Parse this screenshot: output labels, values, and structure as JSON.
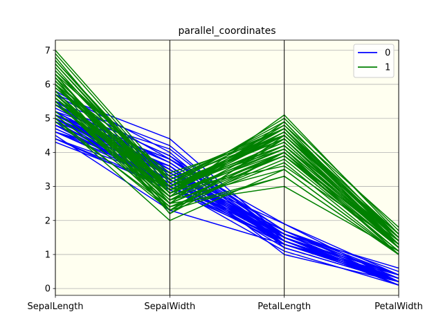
{
  "chart_data": {
    "type": "line",
    "title": "parallel_coordinates",
    "xlabel": "",
    "ylabel": "",
    "categories": [
      "SepalLength",
      "SepalWidth",
      "PetalLength",
      "PetalWidth"
    ],
    "ylim": [
      -0.2,
      7.3
    ],
    "yticks": [
      0,
      1,
      2,
      3,
      4,
      5,
      6,
      7
    ],
    "grid": "horizontal",
    "background": "#fffff0",
    "legend_position": "top-right",
    "series": [
      {
        "name": "0",
        "color": "#0000ff",
        "lines": [
          [
            5.1,
            3.5,
            1.4,
            0.2
          ],
          [
            4.9,
            3.0,
            1.4,
            0.2
          ],
          [
            4.7,
            3.2,
            1.3,
            0.2
          ],
          [
            4.6,
            3.1,
            1.5,
            0.2
          ],
          [
            5.0,
            3.6,
            1.4,
            0.2
          ],
          [
            5.4,
            3.9,
            1.7,
            0.4
          ],
          [
            4.6,
            3.4,
            1.4,
            0.3
          ],
          [
            5.0,
            3.4,
            1.5,
            0.2
          ],
          [
            4.4,
            2.9,
            1.4,
            0.2
          ],
          [
            4.9,
            3.1,
            1.5,
            0.1
          ],
          [
            5.4,
            3.7,
            1.5,
            0.2
          ],
          [
            4.8,
            3.4,
            1.6,
            0.2
          ],
          [
            4.8,
            3.0,
            1.4,
            0.1
          ],
          [
            4.3,
            3.0,
            1.1,
            0.1
          ],
          [
            5.8,
            4.0,
            1.2,
            0.2
          ],
          [
            5.7,
            4.4,
            1.5,
            0.4
          ],
          [
            5.4,
            3.9,
            1.3,
            0.4
          ],
          [
            5.1,
            3.5,
            1.4,
            0.3
          ],
          [
            5.7,
            3.8,
            1.7,
            0.3
          ],
          [
            5.1,
            3.8,
            1.5,
            0.3
          ],
          [
            5.4,
            3.4,
            1.7,
            0.2
          ],
          [
            5.1,
            3.7,
            1.5,
            0.4
          ],
          [
            4.6,
            3.6,
            1.0,
            0.2
          ],
          [
            5.1,
            3.3,
            1.7,
            0.5
          ],
          [
            4.8,
            3.4,
            1.9,
            0.2
          ],
          [
            5.0,
            3.0,
            1.6,
            0.2
          ],
          [
            5.0,
            3.4,
            1.6,
            0.4
          ],
          [
            5.2,
            3.5,
            1.5,
            0.2
          ],
          [
            5.2,
            3.4,
            1.4,
            0.2
          ],
          [
            4.7,
            3.2,
            1.6,
            0.2
          ],
          [
            4.8,
            3.1,
            1.6,
            0.2
          ],
          [
            5.4,
            3.4,
            1.5,
            0.4
          ],
          [
            5.2,
            4.1,
            1.5,
            0.1
          ],
          [
            5.5,
            4.2,
            1.4,
            0.2
          ],
          [
            4.9,
            3.1,
            1.5,
            0.2
          ],
          [
            5.0,
            3.2,
            1.2,
            0.2
          ],
          [
            5.5,
            3.5,
            1.3,
            0.2
          ],
          [
            4.9,
            3.6,
            1.4,
            0.1
          ],
          [
            4.4,
            3.0,
            1.3,
            0.2
          ],
          [
            5.1,
            3.4,
            1.5,
            0.2
          ],
          [
            5.0,
            3.5,
            1.3,
            0.3
          ],
          [
            4.5,
            2.3,
            1.3,
            0.3
          ],
          [
            4.4,
            3.2,
            1.3,
            0.2
          ],
          [
            5.0,
            3.5,
            1.6,
            0.6
          ],
          [
            5.1,
            3.8,
            1.9,
            0.4
          ],
          [
            4.8,
            3.0,
            1.4,
            0.3
          ],
          [
            5.1,
            3.8,
            1.6,
            0.2
          ],
          [
            4.6,
            3.2,
            1.4,
            0.2
          ],
          [
            5.3,
            3.7,
            1.5,
            0.2
          ],
          [
            5.0,
            3.3,
            1.4,
            0.2
          ]
        ]
      },
      {
        "name": "1",
        "color": "#008000",
        "lines": [
          [
            7.0,
            3.2,
            4.7,
            1.4
          ],
          [
            6.4,
            3.2,
            4.5,
            1.5
          ],
          [
            6.9,
            3.1,
            4.9,
            1.5
          ],
          [
            5.5,
            2.3,
            4.0,
            1.3
          ],
          [
            6.5,
            2.8,
            4.6,
            1.5
          ],
          [
            5.7,
            2.8,
            4.5,
            1.3
          ],
          [
            6.3,
            3.3,
            4.7,
            1.6
          ],
          [
            4.9,
            2.4,
            3.3,
            1.0
          ],
          [
            6.6,
            2.9,
            4.6,
            1.3
          ],
          [
            5.2,
            2.7,
            3.9,
            1.4
          ],
          [
            5.0,
            2.0,
            3.5,
            1.0
          ],
          [
            5.9,
            3.0,
            4.2,
            1.5
          ],
          [
            6.0,
            2.2,
            4.0,
            1.0
          ],
          [
            6.1,
            2.9,
            4.7,
            1.4
          ],
          [
            5.6,
            2.9,
            3.6,
            1.3
          ],
          [
            6.7,
            3.1,
            4.4,
            1.4
          ],
          [
            5.6,
            3.0,
            4.5,
            1.5
          ],
          [
            5.8,
            2.7,
            4.1,
            1.0
          ],
          [
            6.2,
            2.2,
            4.5,
            1.5
          ],
          [
            5.6,
            2.5,
            3.9,
            1.1
          ],
          [
            5.9,
            3.2,
            4.8,
            1.8
          ],
          [
            6.1,
            2.8,
            4.0,
            1.3
          ],
          [
            6.3,
            2.5,
            4.9,
            1.5
          ],
          [
            6.1,
            2.8,
            4.7,
            1.2
          ],
          [
            6.4,
            2.9,
            4.3,
            1.3
          ],
          [
            6.6,
            3.0,
            4.4,
            1.4
          ],
          [
            6.8,
            2.8,
            4.8,
            1.4
          ],
          [
            6.7,
            3.0,
            5.0,
            1.7
          ],
          [
            6.0,
            2.9,
            4.5,
            1.5
          ],
          [
            5.7,
            2.6,
            3.5,
            1.0
          ],
          [
            5.5,
            2.4,
            3.8,
            1.1
          ],
          [
            5.5,
            2.4,
            3.7,
            1.0
          ],
          [
            5.8,
            2.7,
            3.9,
            1.2
          ],
          [
            6.0,
            2.7,
            5.1,
            1.6
          ],
          [
            5.4,
            3.0,
            4.5,
            1.5
          ],
          [
            6.0,
            3.4,
            4.5,
            1.6
          ],
          [
            6.7,
            3.1,
            4.7,
            1.5
          ],
          [
            6.3,
            2.3,
            4.4,
            1.3
          ],
          [
            5.6,
            3.0,
            4.1,
            1.3
          ],
          [
            5.5,
            2.5,
            4.0,
            1.3
          ],
          [
            5.5,
            2.6,
            4.4,
            1.2
          ],
          [
            6.1,
            3.0,
            4.6,
            1.4
          ],
          [
            5.8,
            2.6,
            4.0,
            1.2
          ],
          [
            5.0,
            2.3,
            3.3,
            1.0
          ],
          [
            5.6,
            2.7,
            4.2,
            1.3
          ],
          [
            5.7,
            3.0,
            4.2,
            1.2
          ],
          [
            5.7,
            2.9,
            4.2,
            1.3
          ],
          [
            6.2,
            2.9,
            4.3,
            1.3
          ],
          [
            5.1,
            2.5,
            3.0,
            1.1
          ],
          [
            5.7,
            2.8,
            4.1,
            1.3
          ]
        ]
      }
    ]
  }
}
